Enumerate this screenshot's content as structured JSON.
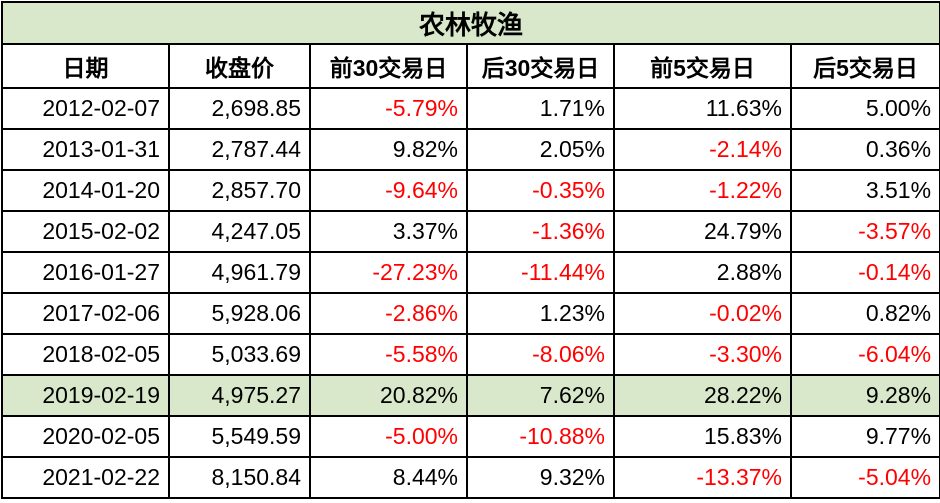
{
  "title": "农林牧渔",
  "headers": [
    "日期",
    "收盘价",
    "前30交易日",
    "后30交易日",
    "前5交易日",
    "后5交易日"
  ],
  "highlight_color": "#d9e8cb",
  "negative_color": "#ff0000",
  "highlight_row_index": 7,
  "rows": [
    [
      "2012-02-07",
      "2,698.85",
      "-5.79%",
      "1.71%",
      "11.63%",
      "5.00%"
    ],
    [
      "2013-01-31",
      "2,787.44",
      "9.82%",
      "2.05%",
      "-2.14%",
      "0.36%"
    ],
    [
      "2014-01-20",
      "2,857.70",
      "-9.64%",
      "-0.35%",
      "-1.22%",
      "3.51%"
    ],
    [
      "2015-02-02",
      "4,247.05",
      "3.37%",
      "-1.36%",
      "24.79%",
      "-3.57%"
    ],
    [
      "2016-01-27",
      "4,961.79",
      "-27.23%",
      "-11.44%",
      "2.88%",
      "-0.14%"
    ],
    [
      "2017-02-06",
      "5,928.06",
      "-2.86%",
      "1.23%",
      "-0.02%",
      "0.82%"
    ],
    [
      "2018-02-05",
      "5,033.69",
      "-5.58%",
      "-8.06%",
      "-3.30%",
      "-6.04%"
    ],
    [
      "2019-02-19",
      "4,975.27",
      "20.82%",
      "7.62%",
      "28.22%",
      "9.28%"
    ],
    [
      "2020-02-05",
      "5,549.59",
      "-5.00%",
      "-10.88%",
      "15.83%",
      "9.77%"
    ],
    [
      "2021-02-22",
      "8,150.84",
      "8.44%",
      "9.32%",
      "-13.37%",
      "-5.04%"
    ]
  ]
}
